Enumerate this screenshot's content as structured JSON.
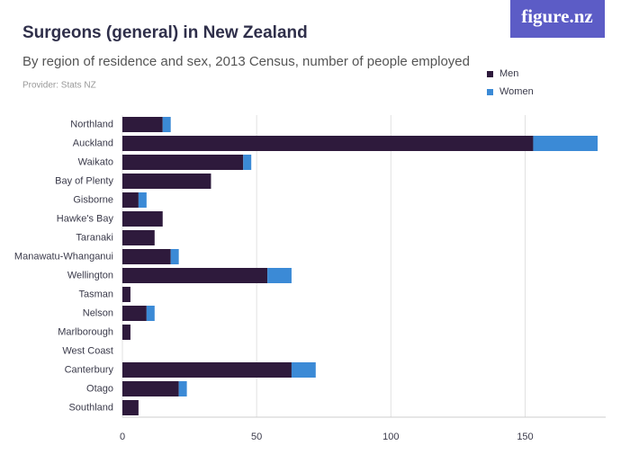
{
  "logo": "figure.nz",
  "chart_data": {
    "type": "stacked-bar-horizontal",
    "title": "Surgeons (general) in New Zealand",
    "subtitle": "By region of residence and sex, 2013 Census, number of people employed",
    "source": "Provider: Stats NZ",
    "categories": [
      "Northland",
      "Auckland",
      "Waikato",
      "Bay of Plenty",
      "Gisborne",
      "Hawke's Bay",
      "Taranaki",
      "Manawatu-Whanganui",
      "Wellington",
      "Tasman",
      "Nelson",
      "Marlborough",
      "West Coast",
      "Canterbury",
      "Otago",
      "Southland"
    ],
    "series": [
      {
        "name": "Men",
        "color": "#2e1a3c",
        "values": [
          15,
          153,
          45,
          33,
          6,
          15,
          12,
          18,
          54,
          3,
          9,
          3,
          0,
          63,
          21,
          6
        ]
      },
      {
        "name": "Women",
        "color": "#3b8ad6",
        "values": [
          3,
          24,
          3,
          0,
          3,
          0,
          0,
          3,
          9,
          0,
          3,
          0,
          0,
          9,
          3,
          0
        ]
      }
    ],
    "xlim": [
      0,
      180
    ],
    "xticks": [
      0,
      50,
      100,
      150
    ],
    "grid": true
  }
}
